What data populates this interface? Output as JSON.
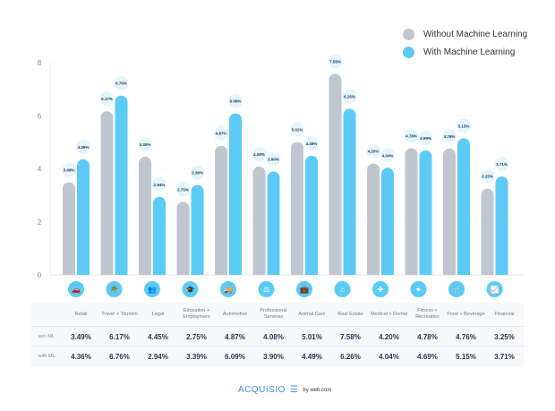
{
  "chart_data": {
    "type": "bar",
    "categories": [
      "Retail",
      "Travel + Tourism",
      "Legal",
      "Education + Employment",
      "Automotive",
      "Professional Services",
      "Animal Care",
      "Real Estate",
      "Medical + Dental",
      "Fitness + Recreation",
      "Food + Beverage",
      "Financial"
    ],
    "category_icons": [
      "car-icon",
      "palm-tree-icon",
      "people-icon",
      "graduation-cap-icon",
      "truck-icon",
      "professional-icon",
      "briefcase-icon",
      "house-icon",
      "medical-icon",
      "heart-icon",
      "food-icon",
      "chart-icon"
    ],
    "series": [
      {
        "name": "Without Machine Learning",
        "color": "#bfc6cf",
        "values": [
          3.49,
          6.17,
          4.45,
          2.75,
          4.87,
          4.08,
          5.01,
          7.58,
          4.2,
          4.78,
          4.76,
          3.25
        ]
      },
      {
        "name": "With Machine Learning",
        "color": "#5bcbf5",
        "values": [
          4.36,
          6.76,
          2.94,
          3.39,
          6.09,
          3.9,
          4.49,
          6.26,
          4.04,
          4.69,
          5.15,
          3.71
        ]
      }
    ],
    "ylim": [
      0,
      8
    ],
    "yticks": [
      "0",
      "2",
      "4",
      "6",
      "8"
    ],
    "grid": true,
    "legend": "top-right",
    "value_suffix": "%"
  },
  "table": {
    "row_labels": [
      "w/o ML",
      "with ML"
    ],
    "headers": [
      "Retail",
      "Travel + Tourism",
      "Legal",
      "Education + Employment",
      "Automotive",
      "Professional Services",
      "Animal Care",
      "Real Estate",
      "Medical + Dental",
      "Fitness + Recreation",
      "Food + Beverage",
      "Financial"
    ],
    "without": [
      "3.49%",
      "6.17%",
      "4.45%",
      "2.75%",
      "4.87%",
      "4.08%",
      "5.01%",
      "7.58%",
      "4.20%",
      "4.78%",
      "4.76%",
      "3.25%"
    ],
    "with": [
      "4.36%",
      "6.76%",
      "2.94%",
      "3.39%",
      "6.09%",
      "3.90%",
      "4.49%",
      "6.26%",
      "4.04%",
      "4.69%",
      "5.15%",
      "3.71%"
    ]
  },
  "footer": {
    "brand": "ACQUISIO",
    "by": "by web.com"
  }
}
